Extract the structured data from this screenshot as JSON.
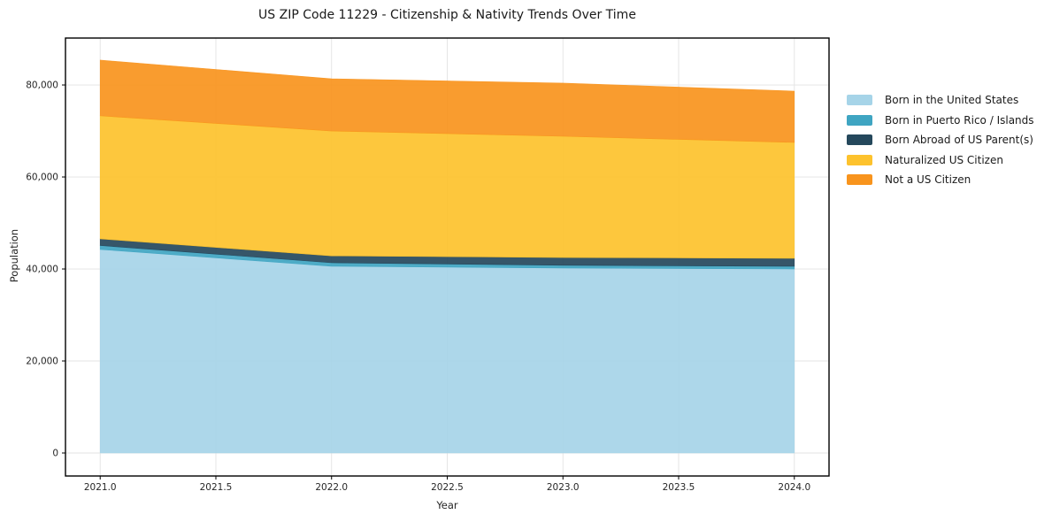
{
  "chart_data": {
    "type": "area",
    "stacked": true,
    "title": "US ZIP Code 11229 - Citizenship & Nativity Trends Over Time",
    "xlabel": "Year",
    "ylabel": "Population",
    "x": [
      2021,
      2022,
      2023,
      2024
    ],
    "series": [
      {
        "name": "Born in the United States",
        "color": "#a6d4e8",
        "values": [
          44250,
          40600,
          40200,
          40000
        ]
      },
      {
        "name": "Born in Puerto Rico / Islands",
        "color": "#3fa5c2",
        "values": [
          850,
          750,
          600,
          580
        ]
      },
      {
        "name": "Born Abroad of US Parent(s)",
        "color": "#25485c",
        "values": [
          1450,
          1500,
          1700,
          1730
        ]
      },
      {
        "name": "Naturalized US Citizen",
        "color": "#fdc22d",
        "values": [
          26750,
          27150,
          26350,
          25200
        ]
      },
      {
        "name": "Not a US Citizen",
        "color": "#f8941d",
        "values": [
          12100,
          11350,
          11550,
          11150
        ]
      }
    ],
    "totals": [
      85400,
      81350,
      80400,
      78660
    ],
    "xlim": [
      2020.85,
      2024.15
    ],
    "ylim": [
      -5000,
      90200
    ],
    "xticks": [
      2021.0,
      2021.5,
      2022.0,
      2022.5,
      2023.0,
      2023.5,
      2024.0
    ],
    "yticks": [
      0,
      20000,
      40000,
      60000,
      80000
    ],
    "grid": true,
    "grid_color": "#e3e3e3",
    "spine_color": "#000000",
    "legend_position": "right"
  }
}
